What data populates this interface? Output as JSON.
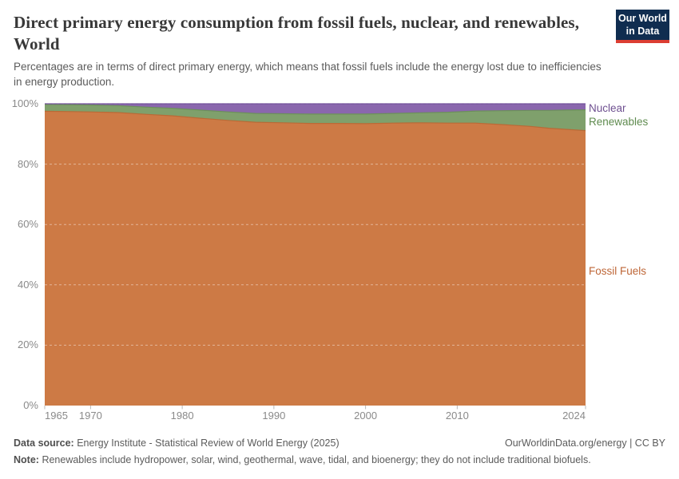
{
  "header": {
    "title": "Direct primary energy consumption from fossil fuels, nuclear, and renewables, World",
    "subtitle": "Percentages are in terms of direct primary energy, which means that fossil fuels include the energy lost due to inefficiencies in energy production."
  },
  "logo": {
    "line1": "Our World",
    "line2": "in Data"
  },
  "chart_data": {
    "type": "area",
    "stacked": true,
    "unit": "%",
    "x_range": [
      1965,
      2024
    ],
    "ylim": [
      0,
      100
    ],
    "grid": "dashed",
    "legend_position": "right-of-plot",
    "x": [
      1965,
      1968,
      1970,
      1973,
      1976,
      1979,
      1982,
      1985,
      1988,
      1991,
      1994,
      1997,
      2000,
      2003,
      2006,
      2009,
      2012,
      2015,
      2018,
      2020,
      2022,
      2024
    ],
    "series": [
      {
        "name": "Fossil Fuels",
        "color": "#cd7a45",
        "stroke": "#b96a36",
        "label_color": "#be6637",
        "values": [
          97.5,
          97.4,
          97.3,
          97.1,
          96.5,
          96.0,
          95.2,
          94.5,
          93.9,
          93.7,
          93.5,
          93.5,
          93.4,
          93.6,
          93.7,
          93.6,
          93.6,
          93.1,
          92.5,
          91.9,
          91.5,
          91.1
        ]
      },
      {
        "name": "Renewables",
        "color": "#7fa06c",
        "stroke": "#6c905a",
        "label_color": "#5f8b4f",
        "values": [
          2.3,
          2.3,
          2.3,
          2.3,
          2.4,
          2.5,
          2.7,
          2.8,
          2.9,
          3.0,
          3.1,
          3.1,
          3.2,
          3.2,
          3.3,
          3.6,
          4.0,
          4.6,
          5.3,
          5.9,
          6.4,
          6.9
        ]
      },
      {
        "name": "Nuclear",
        "color": "#8a67ad",
        "stroke": "#76549e",
        "label_color": "#6e4f90",
        "values": [
          0.2,
          0.3,
          0.4,
          0.6,
          1.1,
          1.5,
          2.1,
          2.7,
          3.2,
          3.3,
          3.4,
          3.4,
          3.4,
          3.2,
          3.0,
          2.8,
          2.4,
          2.3,
          2.2,
          2.2,
          2.1,
          2.0
        ]
      }
    ],
    "y_ticks": [
      {
        "v": 0,
        "label": "0%"
      },
      {
        "v": 20,
        "label": "20%"
      },
      {
        "v": 40,
        "label": "40%"
      },
      {
        "v": 60,
        "label": "60%"
      },
      {
        "v": 80,
        "label": "80%"
      },
      {
        "v": 100,
        "label": "100%"
      }
    ],
    "x_ticks": [
      {
        "v": 1965,
        "label": "1965",
        "align": "start"
      },
      {
        "v": 1970,
        "label": "1970",
        "align": "center"
      },
      {
        "v": 1980,
        "label": "1980",
        "align": "center"
      },
      {
        "v": 1990,
        "label": "1990",
        "align": "center"
      },
      {
        "v": 2000,
        "label": "2000",
        "align": "center"
      },
      {
        "v": 2010,
        "label": "2010",
        "align": "center"
      },
      {
        "v": 2024,
        "label": "2024",
        "align": "end"
      }
    ]
  },
  "footer": {
    "data_source_label": "Data source:",
    "data_source_text": "Energy Institute - Statistical Review of World Energy (2025)",
    "link": "OurWorldinData.org/energy | CC BY",
    "note_label": "Note:",
    "note_text": "Renewables include hydropower, solar, wind, geothermal, wave, tidal, and bioenergy; they do not include traditional biofuels."
  }
}
